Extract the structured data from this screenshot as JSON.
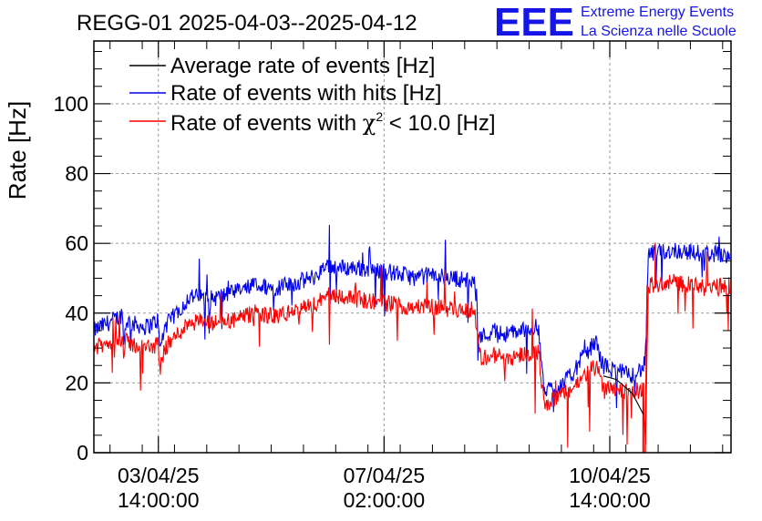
{
  "chart_data": {
    "type": "line",
    "title": "REGG-01 2025-04-03--2025-04-12",
    "ylabel": "Rate [Hz]",
    "xlabel": "",
    "ylim": [
      0,
      118
    ],
    "yticks": [
      0,
      20,
      40,
      60,
      80,
      100
    ],
    "xlim_days": [
      0,
      9.88
    ],
    "xticks": [
      {
        "line1": "03/04/25",
        "line2": "14:00:00",
        "day": 1.0
      },
      {
        "line1": "07/04/25",
        "line2": "02:00:00",
        "day": 4.5
      },
      {
        "line1": "10/04/25",
        "line2": "14:00:00",
        "day": 8.0
      }
    ],
    "grid": true,
    "legend_position": "top-left",
    "legend": [
      {
        "text": "Average rate of events [Hz]",
        "color": "#000000"
      },
      {
        "text": "Rate of events with hits [Hz]",
        "color": "#0000ee"
      },
      {
        "text_prefix": "Rate of events with ",
        "chi": "χ",
        "sup": "2",
        "text_suffix": " < 10.0 [Hz]",
        "color": "#ff0000"
      }
    ],
    "series": [
      {
        "name": "Rate of events with hits [Hz]",
        "color": "#0000ee",
        "x_day": [
          0.0,
          0.2,
          0.3,
          0.4,
          0.45,
          0.46,
          0.5,
          0.6,
          0.8,
          1.0,
          1.02,
          1.1,
          1.5,
          1.8,
          2.2,
          2.5,
          2.8,
          3.0,
          3.2,
          3.5,
          3.55,
          3.8,
          4.1,
          4.5,
          4.8,
          5.0,
          5.2,
          5.6,
          5.9,
          5.95,
          6.0,
          6.2,
          6.4,
          6.6,
          6.9,
          6.95,
          7.0,
          7.2,
          7.4,
          7.6,
          7.8,
          7.82,
          7.9,
          8.0,
          8.2,
          8.3,
          8.5,
          8.55,
          8.6,
          9.0,
          9.5,
          9.87
        ],
        "values": [
          35,
          37,
          38,
          39,
          40,
          30,
          38,
          37,
          36,
          38,
          29,
          36,
          45,
          44,
          46,
          48,
          47,
          48,
          49,
          51,
          54,
          53,
          53,
          52,
          51,
          50,
          51,
          50,
          49,
          40,
          33,
          35,
          34,
          35,
          36,
          22,
          18,
          19,
          22,
          28,
          32,
          29,
          25,
          24,
          23,
          22,
          24,
          26,
          57,
          58,
          57,
          57
        ]
      },
      {
        "name": "Rate of events with χ2 < 10.0 [Hz]",
        "color": "#ff0000",
        "x_day": [
          0.0,
          0.2,
          0.3,
          0.4,
          0.45,
          0.46,
          0.5,
          0.6,
          0.8,
          1.0,
          1.02,
          1.1,
          1.5,
          1.8,
          2.2,
          2.5,
          2.8,
          3.0,
          3.2,
          3.5,
          3.55,
          3.8,
          4.1,
          4.5,
          4.8,
          5.0,
          5.2,
          5.6,
          5.9,
          5.95,
          6.0,
          6.2,
          6.4,
          6.6,
          6.9,
          6.95,
          7.0,
          7.2,
          7.4,
          7.6,
          7.8,
          7.82,
          7.9,
          8.0,
          8.2,
          8.3,
          8.5,
          8.52,
          8.55,
          8.6,
          9.0,
          9.5,
          9.87
        ],
        "values": [
          30,
          31,
          32,
          33,
          33,
          26,
          32,
          31,
          30,
          31,
          24,
          30,
          38,
          37,
          38,
          40,
          39,
          40,
          41,
          43,
          46,
          45,
          44,
          43,
          42,
          42,
          42,
          41,
          41,
          33,
          27,
          28,
          27,
          28,
          29,
          18,
          14,
          16,
          18,
          22,
          25,
          23,
          19,
          19,
          18,
          17,
          18,
          20,
          0,
          48,
          49,
          47,
          48
        ]
      },
      {
        "name": "Average rate of events [Hz]",
        "color": "#000000",
        "x_day": [
          7.9,
          8.1,
          8.35,
          8.52
        ],
        "values": [
          22,
          21,
          17,
          11
        ]
      }
    ]
  },
  "logo": {
    "letters": "EEE",
    "line1": "Extreme Energy Events",
    "line2": "La Scienza nelle Scuole",
    "color": "#1515e6"
  }
}
